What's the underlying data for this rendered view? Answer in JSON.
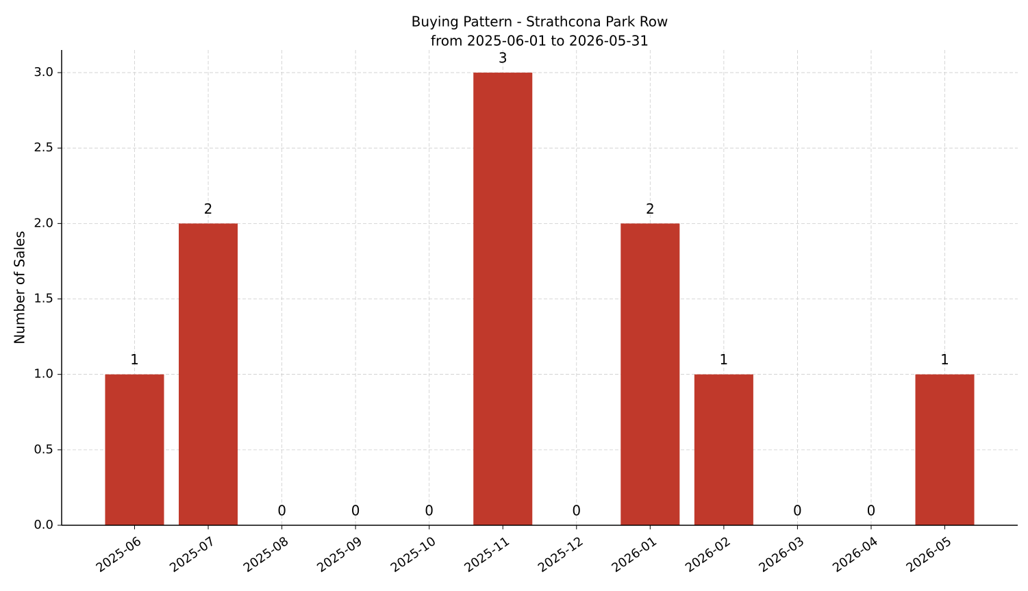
{
  "chart_data": {
    "type": "bar",
    "title": "Buying Pattern - Strathcona Park Row",
    "subtitle": "from 2025-06-01 to 2026-05-31",
    "y_label": "Number of Sales",
    "categories": [
      "2025-06",
      "2025-07",
      "2025-08",
      "2025-09",
      "2025-10",
      "2025-11",
      "2025-12",
      "2026-01",
      "2026-02",
      "2026-03",
      "2026-04",
      "2026-05"
    ],
    "values": [
      1,
      2,
      0,
      0,
      0,
      3,
      0,
      2,
      1,
      0,
      0,
      1
    ],
    "color": "#c0392b",
    "ylim": [
      0,
      3.15
    ],
    "yticks": [
      {
        "value": 0,
        "label": "0.0"
      },
      0.5,
      {
        "value": 1,
        "label": "1.0"
      },
      1.5,
      {
        "value": 2,
        "label": "2.0"
      },
      2.5,
      {
        "value": 3,
        "label": "3.0"
      }
    ],
    "grid": true
  }
}
